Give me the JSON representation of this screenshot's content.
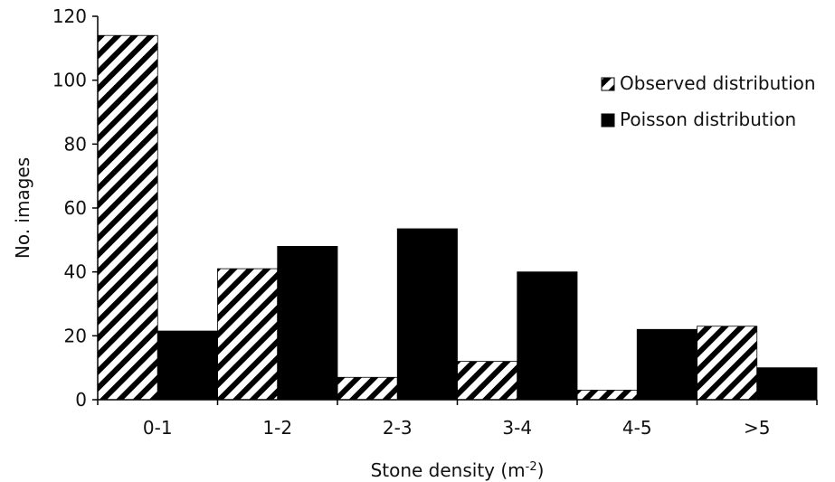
{
  "chart_data": {
    "type": "bar",
    "title": "",
    "xlabel": "Stone density (m",
    "xlabel_superscript": "-2",
    "xlabel_suffix": ")",
    "ylabel": "No. images",
    "ylim": [
      0,
      120
    ],
    "yticks": [
      "0",
      "20",
      "40",
      "60",
      "80",
      "100",
      "120"
    ],
    "categories": [
      "0-1",
      "1-2",
      "2-3",
      "3-4",
      "4-5",
      ">5"
    ],
    "series": [
      {
        "name": "Observed distribution",
        "pattern": "hatched",
        "color": "#000000",
        "values": [
          114,
          41,
          7,
          12,
          3,
          23
        ]
      },
      {
        "name": "Poisson distribution",
        "pattern": "solid",
        "color": "#000000",
        "values": [
          21.5,
          48,
          53.5,
          40,
          22,
          10
        ]
      }
    ],
    "grid": false,
    "legend_position": "top-right"
  }
}
